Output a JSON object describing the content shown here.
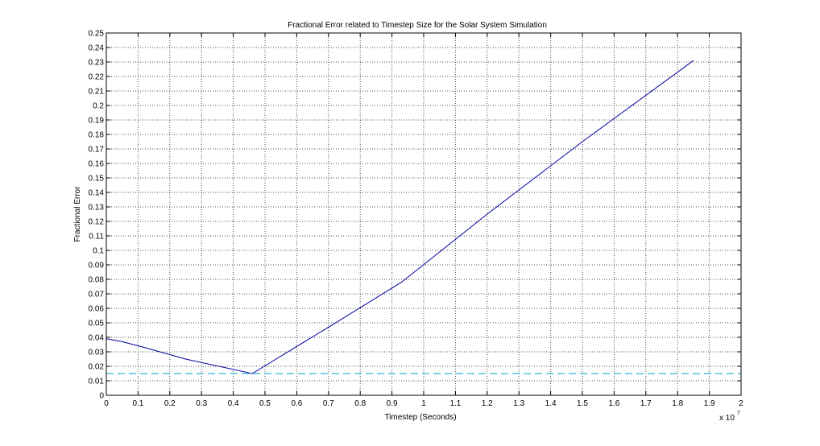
{
  "chart_data": {
    "type": "line",
    "title": "Fractional Error related to Timestep Size for the Solar System Simulation",
    "xlabel": "Timestep (Seconds)",
    "ylabel": "Fractional Error",
    "x_exponent_base": "x 10",
    "x_exponent_power": "7",
    "xlim": [
      0,
      2
    ],
    "ylim": [
      0,
      0.25
    ],
    "x_ticks": [
      "0",
      "0.1",
      "0.2",
      "0.3",
      "0.4",
      "0.5",
      "0.6",
      "0.7",
      "0.8",
      "0.9",
      "1",
      "1.1",
      "1.2",
      "1.3",
      "1.4",
      "1.5",
      "1.6",
      "1.7",
      "1.8",
      "1.9",
      "2"
    ],
    "y_ticks": [
      "0",
      "0.01",
      "0.02",
      "0.03",
      "0.04",
      "0.05",
      "0.06",
      "0.07",
      "0.08",
      "0.09",
      "0.1",
      "0.11",
      "0.12",
      "0.13",
      "0.14",
      "0.15",
      "0.16",
      "0.17",
      "0.18",
      "0.19",
      "0.2",
      "0.21",
      "0.22",
      "0.23",
      "0.24",
      "0.25"
    ],
    "grid": true,
    "series": [
      {
        "color": "#0000a0",
        "style": "solid",
        "x": [
          0,
          0.05,
          0.12,
          0.25,
          0.46,
          0.7,
          0.93,
          1.2,
          1.5,
          1.85
        ],
        "y": [
          0.039,
          0.037,
          0.033,
          0.025,
          0.015,
          0.047,
          0.078,
          0.125,
          0.175,
          0.231
        ]
      },
      {
        "color": "#00a0c8",
        "style": "dashed",
        "x": [
          0,
          2
        ],
        "y": [
          0.015,
          0.015
        ]
      }
    ]
  }
}
